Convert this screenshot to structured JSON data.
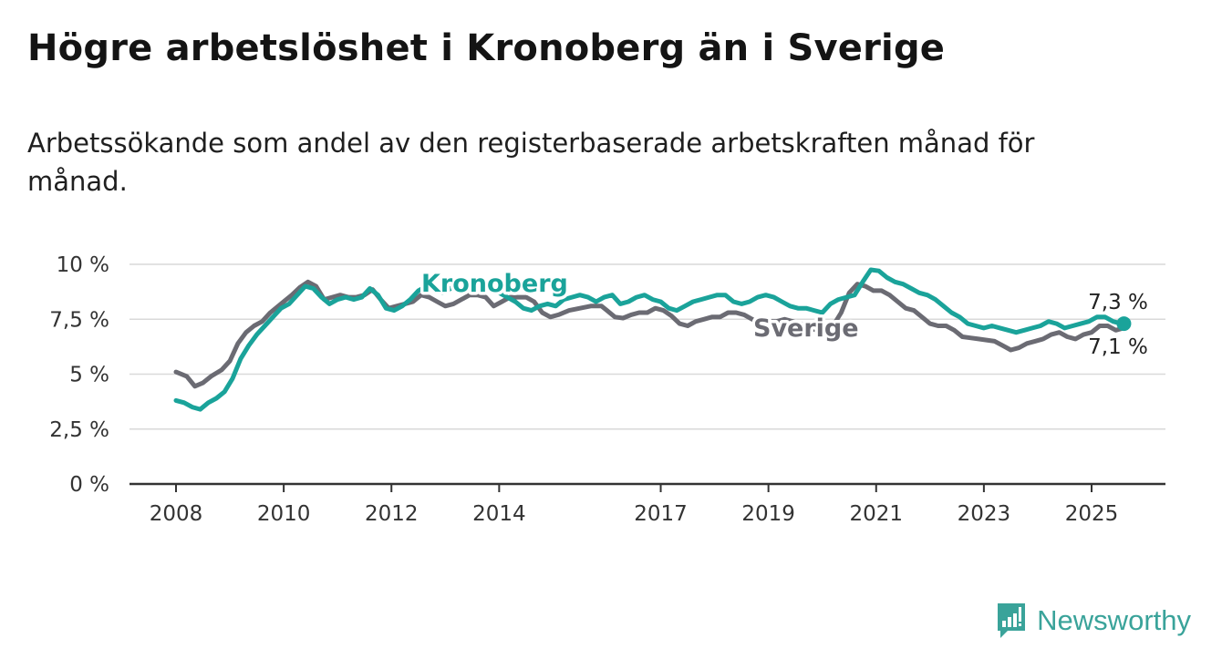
{
  "title": "Högre arbetslöshet i Kronoberg än i Sverige",
  "subtitle": "Arbetssökande som andel av den registerbaserade arbetskraften månad för månad.",
  "brand": "Newsworthy",
  "colors": {
    "kronoberg": "#1aa39a",
    "sverige": "#6b6b73",
    "grid": "#d9d9d9",
    "axis": "#333333"
  },
  "chart_data": {
    "type": "line",
    "xlabel": "",
    "ylabel": "",
    "ylim": [
      0,
      10
    ],
    "xlim": [
      2008,
      2026.4
    ],
    "yticks": [
      {
        "value": 0,
        "label": "0 %"
      },
      {
        "value": 2.5,
        "label": "2,5 %"
      },
      {
        "value": 5,
        "label": "5 %"
      },
      {
        "value": 7.5,
        "label": "7,5 %"
      },
      {
        "value": 10,
        "label": "10 %"
      }
    ],
    "xticks": [
      {
        "value": 2008,
        "label": "2008"
      },
      {
        "value": 2010,
        "label": "2010"
      },
      {
        "value": 2012,
        "label": "2012"
      },
      {
        "value": 2014,
        "label": "2014"
      },
      {
        "value": 2017,
        "label": "2017"
      },
      {
        "value": 2019,
        "label": "2019"
      },
      {
        "value": 2021,
        "label": "2021"
      },
      {
        "value": 2023,
        "label": "2023"
      },
      {
        "value": 2025,
        "label": "2025"
      }
    ],
    "grid": true,
    "series": [
      {
        "name": "Sverige",
        "color": "#6b6b73",
        "end_label": "7,1 %",
        "points": [
          [
            2008.0,
            5.1
          ],
          [
            2008.2,
            4.9
          ],
          [
            2008.35,
            4.45
          ],
          [
            2008.5,
            4.6
          ],
          [
            2008.65,
            4.9
          ],
          [
            2008.85,
            5.2
          ],
          [
            2009.0,
            5.6
          ],
          [
            2009.15,
            6.4
          ],
          [
            2009.3,
            6.9
          ],
          [
            2009.45,
            7.2
          ],
          [
            2009.6,
            7.4
          ],
          [
            2009.75,
            7.8
          ],
          [
            2009.9,
            8.1
          ],
          [
            2010.0,
            8.3
          ],
          [
            2010.15,
            8.6
          ],
          [
            2010.3,
            8.95
          ],
          [
            2010.45,
            9.2
          ],
          [
            2010.6,
            9.0
          ],
          [
            2010.75,
            8.4
          ],
          [
            2010.9,
            8.5
          ],
          [
            2011.05,
            8.6
          ],
          [
            2011.2,
            8.5
          ],
          [
            2011.35,
            8.5
          ],
          [
            2011.5,
            8.6
          ],
          [
            2011.65,
            8.85
          ],
          [
            2011.8,
            8.4
          ],
          [
            2011.95,
            8.0
          ],
          [
            2012.1,
            8.1
          ],
          [
            2012.25,
            8.2
          ],
          [
            2012.4,
            8.3
          ],
          [
            2012.55,
            8.6
          ],
          [
            2012.7,
            8.5
          ],
          [
            2012.85,
            8.3
          ],
          [
            2013.0,
            8.1
          ],
          [
            2013.15,
            8.2
          ],
          [
            2013.3,
            8.4
          ],
          [
            2013.45,
            8.6
          ],
          [
            2013.6,
            8.6
          ],
          [
            2013.75,
            8.5
          ],
          [
            2013.9,
            8.1
          ],
          [
            2014.05,
            8.3
          ],
          [
            2014.2,
            8.5
          ],
          [
            2014.35,
            8.5
          ],
          [
            2014.5,
            8.5
          ],
          [
            2014.65,
            8.3
          ],
          [
            2014.8,
            7.8
          ],
          [
            2014.95,
            7.6
          ],
          [
            2015.1,
            7.7
          ],
          [
            2015.3,
            7.9
          ],
          [
            2015.5,
            8.0
          ],
          [
            2015.7,
            8.1
          ],
          [
            2015.9,
            8.1
          ],
          [
            2016.0,
            7.9
          ],
          [
            2016.15,
            7.6
          ],
          [
            2016.3,
            7.55
          ],
          [
            2016.45,
            7.7
          ],
          [
            2016.6,
            7.8
          ],
          [
            2016.75,
            7.8
          ],
          [
            2016.9,
            8.0
          ],
          [
            2017.05,
            7.9
          ],
          [
            2017.2,
            7.65
          ],
          [
            2017.35,
            7.3
          ],
          [
            2017.5,
            7.2
          ],
          [
            2017.65,
            7.4
          ],
          [
            2017.8,
            7.5
          ],
          [
            2017.95,
            7.6
          ],
          [
            2018.1,
            7.6
          ],
          [
            2018.25,
            7.8
          ],
          [
            2018.4,
            7.8
          ],
          [
            2018.55,
            7.7
          ],
          [
            2018.7,
            7.5
          ],
          [
            2018.85,
            7.3
          ],
          [
            2019.0,
            7.4
          ],
          [
            2019.15,
            7.4
          ],
          [
            2019.3,
            7.5
          ],
          [
            2019.45,
            7.4
          ],
          [
            2019.6,
            7.3
          ],
          [
            2019.75,
            7.1
          ],
          [
            2019.9,
            7.0
          ],
          [
            2020.05,
            7.0
          ],
          [
            2020.2,
            7.2
          ],
          [
            2020.35,
            7.8
          ],
          [
            2020.5,
            8.7
          ],
          [
            2020.65,
            9.1
          ],
          [
            2020.8,
            9.0
          ],
          [
            2020.95,
            8.8
          ],
          [
            2021.1,
            8.8
          ],
          [
            2021.25,
            8.6
          ],
          [
            2021.4,
            8.3
          ],
          [
            2021.55,
            8.0
          ],
          [
            2021.7,
            7.9
          ],
          [
            2021.85,
            7.6
          ],
          [
            2022.0,
            7.3
          ],
          [
            2022.15,
            7.2
          ],
          [
            2022.3,
            7.2
          ],
          [
            2022.45,
            7.0
          ],
          [
            2022.6,
            6.7
          ],
          [
            2022.75,
            6.65
          ],
          [
            2022.9,
            6.6
          ],
          [
            2023.05,
            6.55
          ],
          [
            2023.2,
            6.5
          ],
          [
            2023.35,
            6.3
          ],
          [
            2023.5,
            6.1
          ],
          [
            2023.65,
            6.2
          ],
          [
            2023.8,
            6.4
          ],
          [
            2023.95,
            6.5
          ],
          [
            2024.1,
            6.6
          ],
          [
            2024.25,
            6.8
          ],
          [
            2024.4,
            6.9
          ],
          [
            2024.55,
            6.7
          ],
          [
            2024.7,
            6.6
          ],
          [
            2024.85,
            6.8
          ],
          [
            2025.0,
            6.9
          ],
          [
            2025.15,
            7.2
          ],
          [
            2025.3,
            7.2
          ],
          [
            2025.45,
            7.0
          ],
          [
            2025.6,
            7.1
          ]
        ]
      },
      {
        "name": "Kronoberg",
        "color": "#1aa39a",
        "end_label": "7,3 %",
        "points": [
          [
            2008.0,
            3.8
          ],
          [
            2008.15,
            3.7
          ],
          [
            2008.3,
            3.5
          ],
          [
            2008.45,
            3.4
          ],
          [
            2008.6,
            3.7
          ],
          [
            2008.75,
            3.9
          ],
          [
            2008.9,
            4.2
          ],
          [
            2009.05,
            4.8
          ],
          [
            2009.2,
            5.7
          ],
          [
            2009.35,
            6.3
          ],
          [
            2009.5,
            6.8
          ],
          [
            2009.65,
            7.2
          ],
          [
            2009.8,
            7.6
          ],
          [
            2009.95,
            8.0
          ],
          [
            2010.1,
            8.2
          ],
          [
            2010.25,
            8.6
          ],
          [
            2010.4,
            9.0
          ],
          [
            2010.55,
            8.9
          ],
          [
            2010.7,
            8.5
          ],
          [
            2010.85,
            8.2
          ],
          [
            2011.0,
            8.4
          ],
          [
            2011.15,
            8.5
          ],
          [
            2011.3,
            8.4
          ],
          [
            2011.45,
            8.5
          ],
          [
            2011.6,
            8.9
          ],
          [
            2011.75,
            8.6
          ],
          [
            2011.9,
            8.0
          ],
          [
            2012.05,
            7.9
          ],
          [
            2012.2,
            8.1
          ],
          [
            2012.35,
            8.4
          ],
          [
            2012.5,
            8.8
          ],
          [
            2012.65,
            9.0
          ],
          [
            2012.8,
            8.8
          ],
          [
            2012.95,
            8.7
          ],
          [
            2013.1,
            8.9
          ],
          [
            2013.25,
            9.1
          ],
          [
            2013.4,
            9.3
          ],
          [
            2013.55,
            9.1
          ],
          [
            2013.7,
            9.0
          ],
          [
            2013.85,
            8.9
          ],
          [
            2014.0,
            8.7
          ],
          [
            2014.15,
            8.5
          ],
          [
            2014.3,
            8.3
          ],
          [
            2014.45,
            8.0
          ],
          [
            2014.6,
            7.9
          ],
          [
            2014.75,
            8.1
          ],
          [
            2014.9,
            8.2
          ],
          [
            2015.05,
            8.1
          ],
          [
            2015.2,
            8.4
          ],
          [
            2015.35,
            8.5
          ],
          [
            2015.5,
            8.6
          ],
          [
            2015.65,
            8.5
          ],
          [
            2015.8,
            8.3
          ],
          [
            2015.95,
            8.5
          ],
          [
            2016.1,
            8.6
          ],
          [
            2016.25,
            8.2
          ],
          [
            2016.4,
            8.3
          ],
          [
            2016.55,
            8.5
          ],
          [
            2016.7,
            8.6
          ],
          [
            2016.85,
            8.4
          ],
          [
            2017.0,
            8.3
          ],
          [
            2017.15,
            8.0
          ],
          [
            2017.3,
            7.9
          ],
          [
            2017.45,
            8.1
          ],
          [
            2017.6,
            8.3
          ],
          [
            2017.75,
            8.4
          ],
          [
            2017.9,
            8.5
          ],
          [
            2018.05,
            8.6
          ],
          [
            2018.2,
            8.6
          ],
          [
            2018.35,
            8.3
          ],
          [
            2018.5,
            8.2
          ],
          [
            2018.65,
            8.3
          ],
          [
            2018.8,
            8.5
          ],
          [
            2018.95,
            8.6
          ],
          [
            2019.1,
            8.5
          ],
          [
            2019.25,
            8.3
          ],
          [
            2019.4,
            8.1
          ],
          [
            2019.55,
            8.0
          ],
          [
            2019.7,
            8.0
          ],
          [
            2019.85,
            7.9
          ],
          [
            2020.0,
            7.8
          ],
          [
            2020.15,
            8.2
          ],
          [
            2020.3,
            8.4
          ],
          [
            2020.45,
            8.5
          ],
          [
            2020.6,
            8.6
          ],
          [
            2020.75,
            9.2
          ],
          [
            2020.9,
            9.75
          ],
          [
            2021.05,
            9.7
          ],
          [
            2021.2,
            9.4
          ],
          [
            2021.35,
            9.2
          ],
          [
            2021.5,
            9.1
          ],
          [
            2021.65,
            8.9
          ],
          [
            2021.8,
            8.7
          ],
          [
            2021.95,
            8.6
          ],
          [
            2022.1,
            8.4
          ],
          [
            2022.25,
            8.1
          ],
          [
            2022.4,
            7.8
          ],
          [
            2022.55,
            7.6
          ],
          [
            2022.7,
            7.3
          ],
          [
            2022.85,
            7.2
          ],
          [
            2023.0,
            7.1
          ],
          [
            2023.15,
            7.2
          ],
          [
            2023.3,
            7.1
          ],
          [
            2023.45,
            7.0
          ],
          [
            2023.6,
            6.9
          ],
          [
            2023.75,
            7.0
          ],
          [
            2023.9,
            7.1
          ],
          [
            2024.05,
            7.2
          ],
          [
            2024.2,
            7.4
          ],
          [
            2024.35,
            7.3
          ],
          [
            2024.5,
            7.1
          ],
          [
            2024.65,
            7.2
          ],
          [
            2024.8,
            7.3
          ],
          [
            2024.95,
            7.4
          ],
          [
            2025.1,
            7.6
          ],
          [
            2025.25,
            7.6
          ],
          [
            2025.4,
            7.4
          ],
          [
            2025.55,
            7.3
          ],
          [
            2025.6,
            7.3
          ]
        ]
      }
    ]
  }
}
